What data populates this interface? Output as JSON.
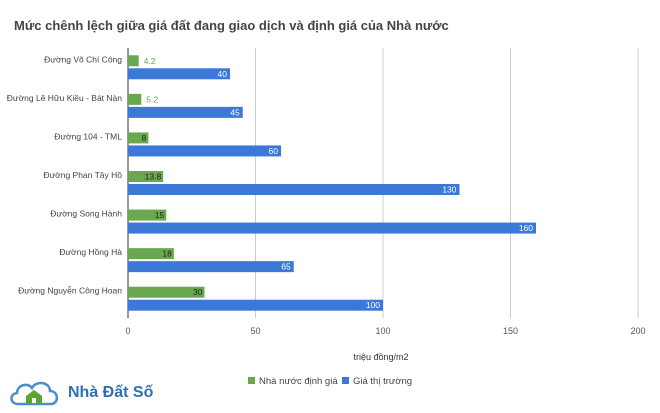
{
  "chart_data": {
    "type": "bar",
    "title": "Mức chênh lệch giữa giá đất đang giao dịch và định giá của Nhà nước",
    "xlabel": "triệu đồng/m2",
    "ylabel": "",
    "orientation": "horizontal",
    "categories": [
      "Đường Võ Chí Công",
      "Đường Lê Hữu Kiều - Bát Nàn",
      "Đường 104 - TML",
      "Đường Phan Tây Hồ",
      "Đường Song Hành",
      "Đường Hồng Hà",
      "Đường Nguyễn Công Hoan"
    ],
    "series": [
      {
        "name": "Nhà nước định giá",
        "color": "#6aa84f",
        "values": [
          4.2,
          5.2,
          8,
          13.8,
          15,
          18,
          30
        ]
      },
      {
        "name": "Giá thị trường",
        "color": "#3c78d8",
        "values": [
          40,
          45,
          60,
          130,
          160,
          65,
          100
        ]
      }
    ],
    "xlim": [
      0,
      200
    ],
    "xticks": [
      "0",
      "50",
      "100",
      "150",
      "200"
    ],
    "grid": true,
    "legend": "bottom"
  },
  "logo": {
    "text": "Nhà Đất Số"
  }
}
